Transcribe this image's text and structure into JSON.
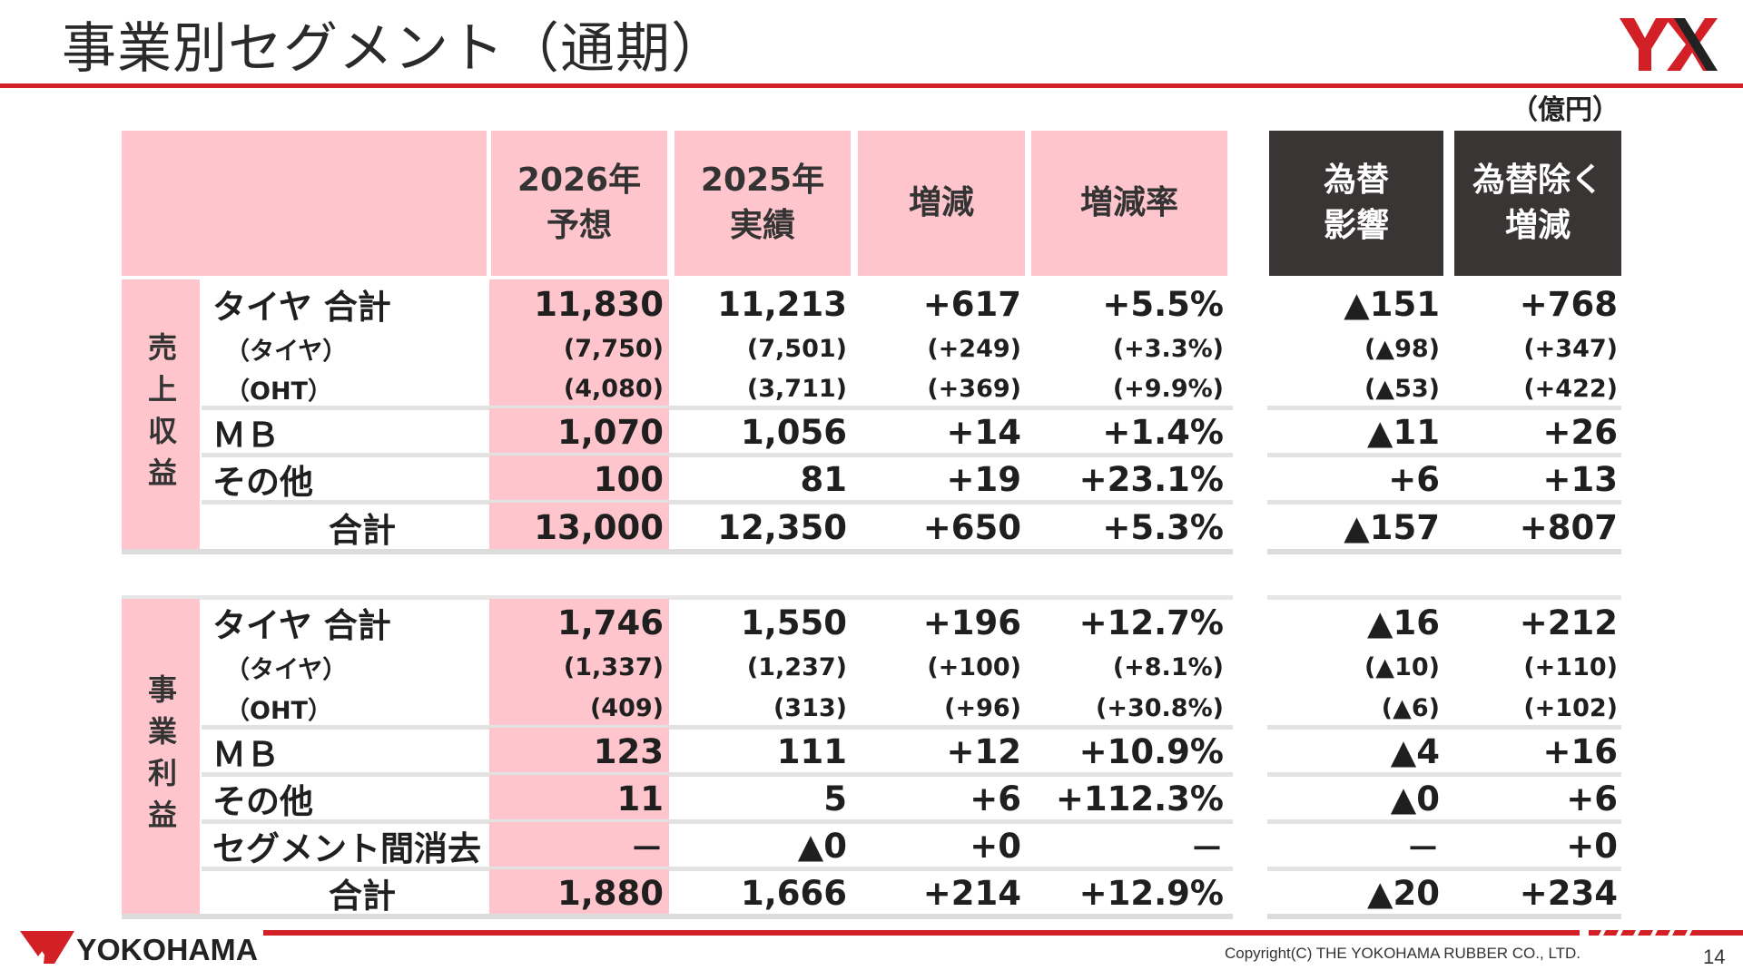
{
  "title": "事業別セグメント（通期）",
  "unit": "（億円）",
  "header": {
    "col1": [
      "2026年",
      "予想"
    ],
    "col2": [
      "2025年",
      "実績"
    ],
    "col3": "増減",
    "col4": "増減率",
    "col5": [
      "為替",
      "影響"
    ],
    "col6": [
      "為替除く",
      "増減"
    ]
  },
  "sales": {
    "side": "売上収益",
    "rows": [
      {
        "label": "タイヤ 合計",
        "size": "big",
        "v": [
          "11,830",
          "11,213",
          "+617",
          "+5.5%",
          "▲151",
          "+768"
        ]
      },
      {
        "label": "（タイヤ）",
        "size": "small",
        "v": [
          "(7,750)",
          "(7,501)",
          "(+249)",
          "(+3.3%)",
          "(▲98)",
          "(+347)"
        ]
      },
      {
        "label": "（OHT）",
        "size": "small",
        "v": [
          "(4,080)",
          "(3,711)",
          "(+369)",
          "(+9.9%)",
          "(▲53)",
          "(+422)"
        ]
      },
      {
        "label": "ＭＢ",
        "size": "big",
        "v": [
          "1,070",
          "1,056",
          "+14",
          "+1.4%",
          "▲11",
          "+26"
        ]
      },
      {
        "label": "その他",
        "size": "big",
        "v": [
          "100",
          "81",
          "+19",
          "+23.1%",
          "+6",
          "+13"
        ]
      },
      {
        "label": "合計",
        "size": "big",
        "total": true,
        "v": [
          "13,000",
          "12,350",
          "+650",
          "+5.3%",
          "▲157",
          "+807"
        ]
      }
    ]
  },
  "profit": {
    "side": "事業利益",
    "rows": [
      {
        "label": "タイヤ 合計",
        "size": "big",
        "v": [
          "1,746",
          "1,550",
          "+196",
          "+12.7%",
          "▲16",
          "+212"
        ]
      },
      {
        "label": "（タイヤ）",
        "size": "small",
        "v": [
          "(1,337)",
          "(1,237)",
          "(+100)",
          "(+8.1%)",
          "(▲10)",
          "(+110)"
        ]
      },
      {
        "label": "（OHT）",
        "size": "small",
        "v": [
          "(409)",
          "(313)",
          "(+96)",
          "(+30.8%)",
          "(▲6)",
          "(+102)"
        ]
      },
      {
        "label": "ＭＢ",
        "size": "big",
        "v": [
          "123",
          "111",
          "+12",
          "+10.9%",
          "▲4",
          "+16"
        ]
      },
      {
        "label": "その他",
        "size": "big",
        "v": [
          "11",
          "5",
          "+6",
          "+112.3%",
          "▲0",
          "+6"
        ]
      },
      {
        "label": "セグメント間消去",
        "size": "big",
        "v": [
          "－",
          "▲0",
          "+0",
          "－",
          "－",
          "+0"
        ]
      },
      {
        "label": "合計",
        "size": "big",
        "total": true,
        "v": [
          "1,880",
          "1,666",
          "+214",
          "+12.9%",
          "▲20",
          "+234"
        ]
      }
    ]
  },
  "footer": {
    "brand": "YOKOHAMA",
    "copyright": "Copyright(C) THE YOKOHAMA RUBBER CO., LTD.",
    "page": "14"
  },
  "colors": {
    "accent_red": "#d31f26",
    "pink": "#fec6cc",
    "dark_header": "#3a3535"
  },
  "icons": [
    "yx-logo-icon",
    "yokohama-logo-icon"
  ]
}
